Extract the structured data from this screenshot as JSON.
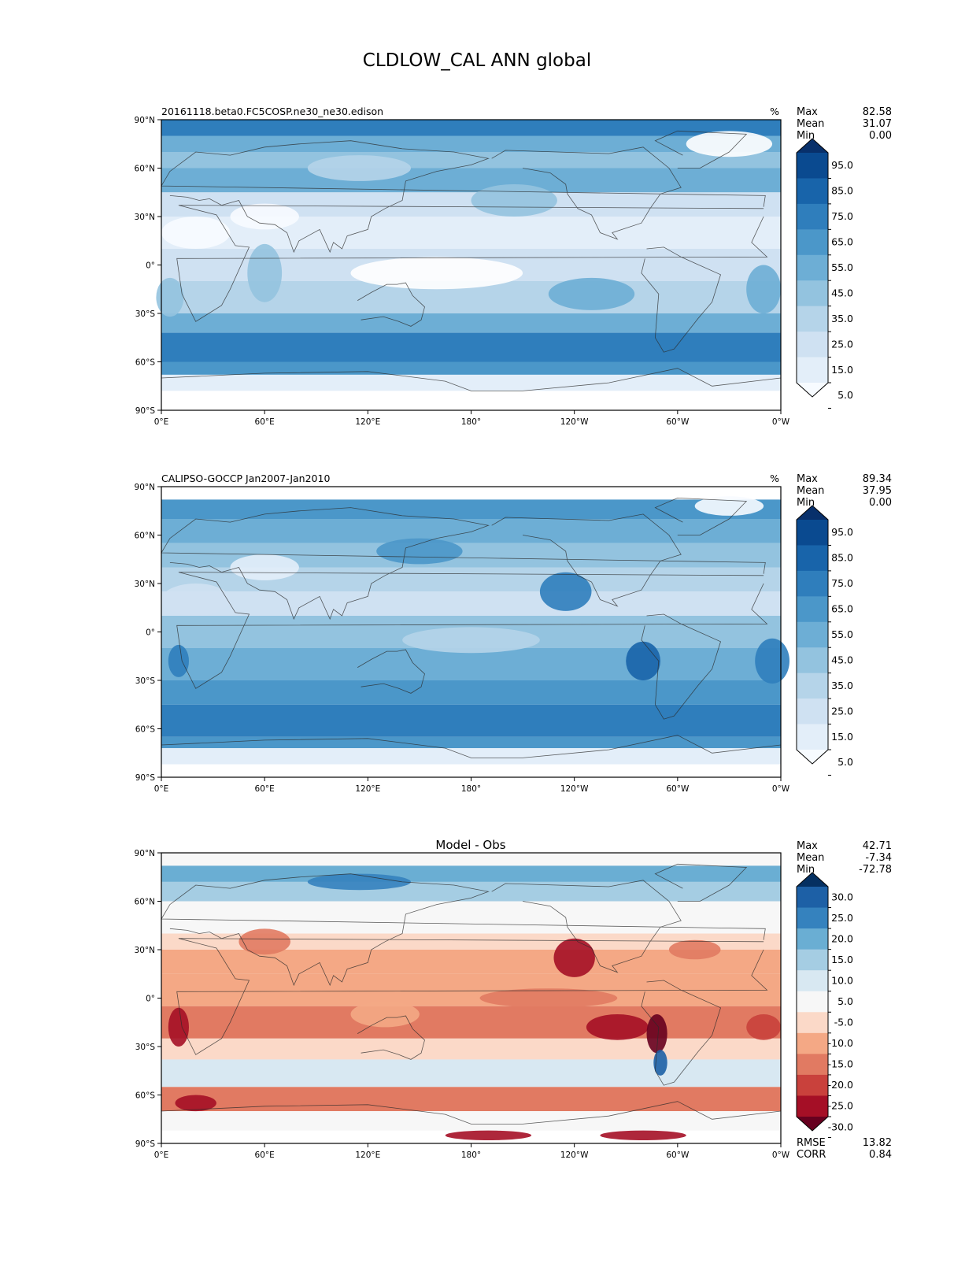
{
  "figure": {
    "title": "CLDLOW_CAL ANN global"
  },
  "chart_data": [
    {
      "type": "heatmap",
      "title": "20161118.beta0.FC5COSP.ne30_ne30.edison",
      "units": "%",
      "xticks": [
        "0°E",
        "60°E",
        "120°E",
        "180°",
        "120°W",
        "60°W",
        "0°W"
      ],
      "yticks": [
        "90°N",
        "60°N",
        "30°N",
        "0°",
        "30°S",
        "60°S",
        "90°S"
      ],
      "xlim": [
        0,
        360
      ],
      "ylim": [
        -90,
        90
      ],
      "stats": [
        {
          "label": "Max",
          "value": "82.58"
        },
        {
          "label": "Mean",
          "value": "31.07"
        },
        {
          "label": "Min",
          "value": "0.00"
        }
      ],
      "colorbar": {
        "colors": [
          "#f7fbff",
          "#e3eef9",
          "#cfe1f2",
          "#b5d4e9",
          "#93c3df",
          "#6daed5",
          "#4b97c9",
          "#2f7ebc",
          "#1864aa",
          "#0a4a90",
          "#08306b"
        ],
        "labels": [
          "95.0",
          "85.0",
          "75.0",
          "65.0",
          "55.0",
          "45.0",
          "35.0",
          "25.0",
          "15.0",
          "5.0"
        ],
        "extend": "both"
      }
    },
    {
      "type": "heatmap",
      "title": "CALIPSO-GOCCP Jan2007-Jan2010",
      "units": "%",
      "xticks": [
        "0°E",
        "60°E",
        "120°E",
        "180°",
        "120°W",
        "60°W",
        "0°W"
      ],
      "yticks": [
        "90°N",
        "60°N",
        "30°N",
        "0°",
        "30°S",
        "60°S",
        "90°S"
      ],
      "xlim": [
        0,
        360
      ],
      "ylim": [
        -90,
        90
      ],
      "stats": [
        {
          "label": "Max",
          "value": "89.34"
        },
        {
          "label": "Mean",
          "value": "37.95"
        },
        {
          "label": "Min",
          "value": "0.00"
        }
      ],
      "colorbar": {
        "colors": [
          "#f7fbff",
          "#e3eef9",
          "#cfe1f2",
          "#b5d4e9",
          "#93c3df",
          "#6daed5",
          "#4b97c9",
          "#2f7ebc",
          "#1864aa",
          "#0a4a90",
          "#08306b"
        ],
        "labels": [
          "95.0",
          "85.0",
          "75.0",
          "65.0",
          "55.0",
          "45.0",
          "35.0",
          "25.0",
          "15.0",
          "5.0"
        ],
        "extend": "both"
      }
    },
    {
      "type": "heatmap",
      "title": "Model - Obs",
      "units": "",
      "xticks": [
        "0°E",
        "60°E",
        "120°E",
        "180°",
        "120°W",
        "60°W",
        "0°W"
      ],
      "yticks": [
        "90°N",
        "60°N",
        "30°N",
        "0°",
        "30°S",
        "60°S",
        "90°S"
      ],
      "xlim": [
        0,
        360
      ],
      "ylim": [
        -90,
        90
      ],
      "stats": [
        {
          "label": "Max",
          "value": "42.71"
        },
        {
          "label": "Mean",
          "value": "-7.34"
        },
        {
          "label": "Min",
          "value": "-72.78"
        }
      ],
      "extra_stats": [
        {
          "label": "RMSE",
          "value": "13.82"
        },
        {
          "label": "CORR",
          "value": "0.84"
        }
      ],
      "colorbar": {
        "colors": [
          "#67001f",
          "#a50f26",
          "#c9413c",
          "#e17a62",
          "#f4a885",
          "#fbd9c8",
          "#f7f7f7",
          "#d8e8f2",
          "#a5cde3",
          "#6aaed3",
          "#3582be",
          "#1d60a6",
          "#053061"
        ],
        "labels": [
          "30.0",
          "25.0",
          "20.0",
          "15.0",
          "10.0",
          "5.0",
          "-5.0",
          "-10.0",
          "-15.0",
          "-20.0",
          "-25.0",
          "-30.0"
        ],
        "extend": "both"
      }
    }
  ]
}
